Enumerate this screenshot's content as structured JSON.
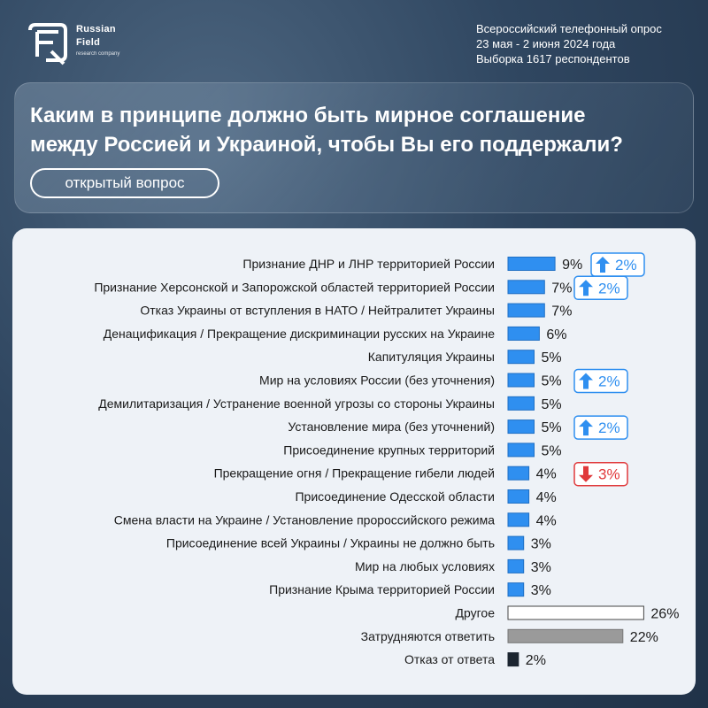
{
  "header": {
    "brand_line1": "Russian",
    "brand_line2": "Field",
    "brand_line3": "research company",
    "survey_info": [
      "Всероссийский телефонный опрос",
      "23 мая - 2 июня 2024 года",
      "Выборка 1617 респондентов"
    ]
  },
  "question": {
    "text_line1": "Каким в принципе должно быть мирное соглашение",
    "text_line2": "между Россией и Украиной, чтобы Вы его  поддержали?",
    "type_label": "открытый вопрос"
  },
  "colors": {
    "bar_blue": "#2f8ff0",
    "bar_other": "#ffffff",
    "bar_hard": "#9a9a9a",
    "bar_refuse": "#1c2530",
    "change_up": "#2f8ff0",
    "change_down": "#e0393b"
  },
  "chart_data": {
    "type": "bar",
    "orientation": "horizontal",
    "unit": "%",
    "xlim": [
      0,
      30
    ],
    "categories": [
      "Признание ДНР и ЛНР территорией России",
      "Признание Херсонской и Запорожской областей территорией России",
      "Отказ Украины от вступления в НАТО / Нейтралитет Украины",
      "Денацификация / Прекращение дискриминации русских на Украине",
      "Капитуляция Украины",
      "Мир на условиях России (без уточнения)",
      "Демилитаризация / Устранение военной угрозы со стороны Украины",
      "Установление мира (без уточнений)",
      "Присоединение крупных территорий",
      "Прекращение огня / Прекращение гибели людей",
      "Присоединение Одесской области",
      "Смена власти на Украине / Установление пророссийского режима",
      "Присоединение всей Украины / Украины не должно быть",
      "Мир на любых условиях",
      "Признание Крыма территорией России",
      "Другое",
      "Затрудняются ответить",
      "Отказ от ответа"
    ],
    "values": [
      9,
      7,
      7,
      6,
      5,
      5,
      5,
      5,
      5,
      4,
      4,
      4,
      3,
      3,
      3,
      26,
      22,
      2
    ],
    "value_labels": [
      "9%",
      "7%",
      "7%",
      "6%",
      "5%",
      "5%",
      "5%",
      "5%",
      "5%",
      "4%",
      "4%",
      "4%",
      "3%",
      "3%",
      "3%",
      "26%",
      "22%",
      "2%"
    ],
    "bar_styles": [
      "blue",
      "blue",
      "blue",
      "blue",
      "blue",
      "blue",
      "blue",
      "blue",
      "blue",
      "blue",
      "blue",
      "blue",
      "blue",
      "blue",
      "blue",
      "other",
      "hard",
      "refuse"
    ],
    "changes": [
      {
        "row": 0,
        "direction": "up",
        "label": "2%"
      },
      {
        "row": 1,
        "direction": "up",
        "label": "2%"
      },
      {
        "row": 5,
        "direction": "up",
        "label": "2%"
      },
      {
        "row": 7,
        "direction": "up",
        "label": "2%"
      },
      {
        "row": 9,
        "direction": "down",
        "label": "3%"
      }
    ]
  }
}
